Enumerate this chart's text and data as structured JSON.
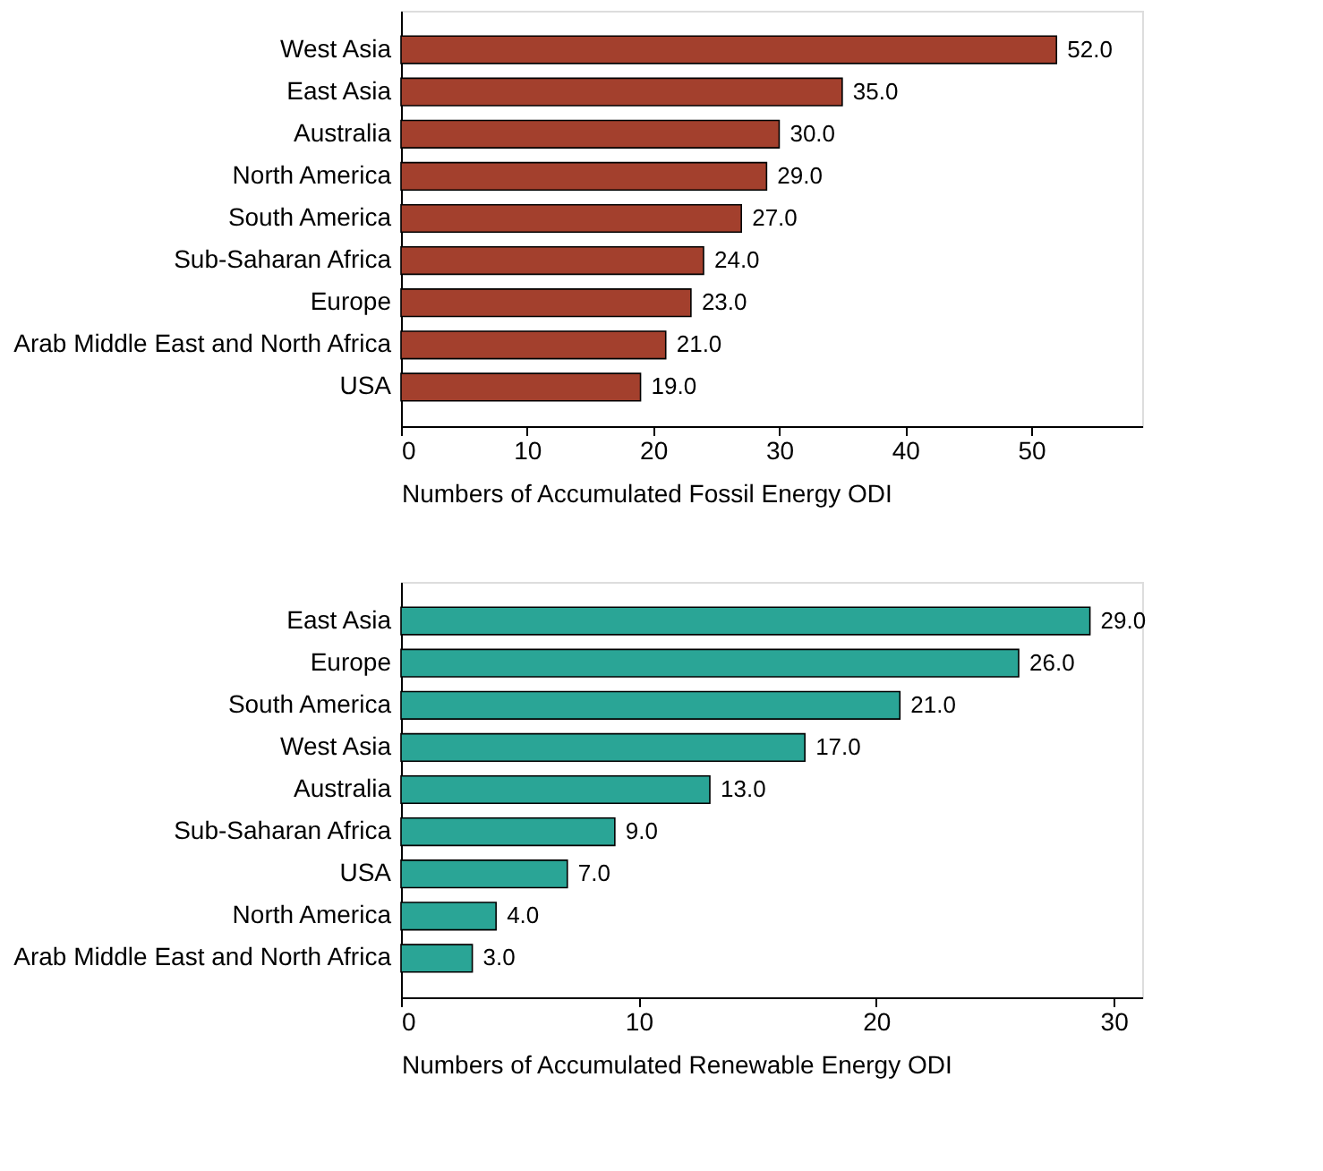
{
  "chart_data": [
    {
      "type": "bar",
      "orientation": "horizontal",
      "xlabel": "Numbers of Accumulated Fossil Energy ODI",
      "categories": [
        "West Asia",
        "East Asia",
        "Australia",
        "North America",
        "South America",
        "Sub-Saharan Africa",
        "Europe",
        "Arab Middle East and North Africa",
        "USA"
      ],
      "values": [
        52,
        35,
        30,
        29,
        27,
        24,
        23,
        21,
        19
      ],
      "value_labels": [
        "52.0",
        "35.0",
        "30.0",
        "29.0",
        "27.0",
        "24.0",
        "23.0",
        "21.0",
        "19.0"
      ],
      "color": "#a3402d",
      "xlim": [
        0,
        58.8
      ],
      "xticks": [
        0,
        10,
        20,
        30,
        40,
        50
      ],
      "grid": false
    },
    {
      "type": "bar",
      "orientation": "horizontal",
      "xlabel": "Numbers of Accumulated Renewable Energy ODI",
      "categories": [
        "East Asia",
        "Europe",
        "South America",
        "West Asia",
        "Australia",
        "Sub-Saharan Africa",
        "USA",
        "North America",
        "Arab Middle East and North Africa"
      ],
      "values": [
        29,
        26,
        21,
        17,
        13,
        9,
        7,
        4,
        3
      ],
      "value_labels": [
        "29.0",
        "26.0",
        "21.0",
        "17.0",
        "13.0",
        "9.0",
        "7.0",
        "4.0",
        "3.0"
      ],
      "color": "#2aa596",
      "xlim": [
        0,
        31.2
      ],
      "xticks": [
        0,
        10,
        20,
        30
      ],
      "grid": false
    }
  ]
}
